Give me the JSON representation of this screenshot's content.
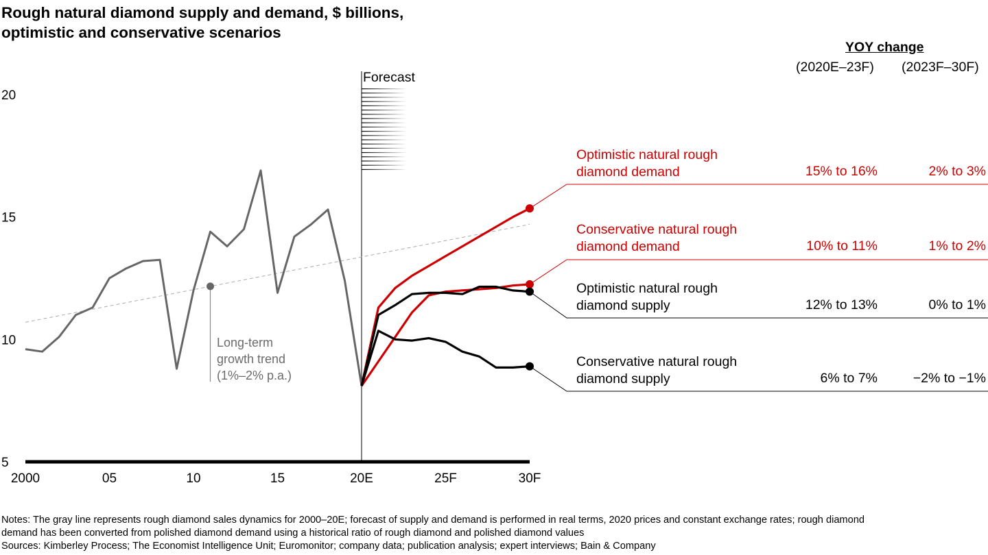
{
  "title_line1": "Rough natural diamond supply and demand, $ billions,",
  "title_line2": "optimistic and conservative scenarios",
  "forecast_label": "Forecast",
  "trend_annotation": {
    "line1": "Long-term",
    "line2": "growth trend",
    "line3": "(1%–2% p.a.)"
  },
  "yoy": {
    "header": "YOY change",
    "col1": "(2020E–23F)",
    "col2": "(2023F–30F)"
  },
  "legend": [
    {
      "line1": "Optimistic natural rough",
      "line2": "diamond demand",
      "v1": "15% to 16%",
      "v2": "2% to 3%",
      "color": "#cc0000"
    },
    {
      "line1": "Conservative natural rough",
      "line2": "diamond demand",
      "v1": "10% to 11%",
      "v2": "1% to 2%",
      "color": "#cc0000"
    },
    {
      "line1": "Optimistic natural rough",
      "line2": "diamond supply",
      "v1": "12% to 13%",
      "v2": "0% to 1%",
      "color": "#000000"
    },
    {
      "line1": "Conservative natural rough",
      "line2": "diamond supply",
      "v1": "6% to 7%",
      "v2": "−2% to −1%",
      "color": "#000000"
    }
  ],
  "notes": {
    "line1": "Notes: The gray line represents rough diamond sales dynamics for 2000–20E; forecast of supply and demand is performed in real terms, 2020 prices and constant exchange rates; rough diamond",
    "line2": "demand has been converted from polished diamond demand using a historical ratio of rough diamond and polished diamond values",
    "line3": "Sources: Kimberley Process; The Economist Intelligence Unit; Euromonitor; company data; publication analysis; expert interviews; Bain & Company"
  },
  "chart_data": {
    "type": "line",
    "title": "Rough natural diamond supply and demand, $ billions, optimistic and conservative scenarios",
    "xlabel": "",
    "ylabel": "$ billions",
    "ylim": [
      5,
      20
    ],
    "xlim": [
      2000,
      2030
    ],
    "yticks": [
      5,
      10,
      15,
      20
    ],
    "xticks": [
      {
        "value": 2000,
        "label": "2000"
      },
      {
        "value": 2005,
        "label": "05"
      },
      {
        "value": 2010,
        "label": "10"
      },
      {
        "value": 2015,
        "label": "15"
      },
      {
        "value": 2020,
        "label": "20E"
      },
      {
        "value": 2025,
        "label": "25F"
      },
      {
        "value": 2030,
        "label": "30F"
      }
    ],
    "grid": false,
    "forecast_start": 2020,
    "series": [
      {
        "name": "Historical rough diamond sales",
        "color": "#666666",
        "x": [
          2000,
          2001,
          2002,
          2003,
          2004,
          2005,
          2006,
          2007,
          2008,
          2009,
          2010,
          2011,
          2012,
          2013,
          2014,
          2015,
          2016,
          2017,
          2018,
          2019,
          2020
        ],
        "values": [
          9.6,
          9.5,
          10.1,
          11.0,
          11.3,
          12.5,
          12.9,
          13.2,
          13.25,
          8.8,
          12.0,
          14.4,
          13.8,
          14.5,
          16.9,
          11.9,
          14.2,
          14.7,
          15.3,
          12.4,
          8.1
        ]
      },
      {
        "name": "Optimistic natural rough diamond demand",
        "color": "#cc0000",
        "x": [
          2020,
          2021,
          2022,
          2023,
          2024,
          2025,
          2026,
          2027,
          2028,
          2029,
          2030
        ],
        "values": [
          8.1,
          11.3,
          12.1,
          12.6,
          13.0,
          13.4,
          13.8,
          14.2,
          14.6,
          15.0,
          15.35
        ]
      },
      {
        "name": "Conservative natural rough diamond demand",
        "color": "#cc0000",
        "x": [
          2020,
          2021,
          2022,
          2023,
          2024,
          2025,
          2026,
          2027,
          2028,
          2029,
          2030
        ],
        "values": [
          8.1,
          9.1,
          10.1,
          11.1,
          11.8,
          11.95,
          12.0,
          12.05,
          12.1,
          12.2,
          12.25
        ]
      },
      {
        "name": "Optimistic natural rough diamond supply",
        "color": "#000000",
        "x": [
          2020,
          2021,
          2022,
          2023,
          2024,
          2025,
          2026,
          2027,
          2028,
          2029,
          2030
        ],
        "values": [
          8.1,
          11.0,
          11.4,
          11.85,
          11.9,
          11.9,
          11.85,
          12.15,
          12.15,
          12.0,
          11.95
        ]
      },
      {
        "name": "Conservative natural rough diamond supply",
        "color": "#000000",
        "x": [
          2020,
          2021,
          2022,
          2023,
          2024,
          2025,
          2026,
          2027,
          2028,
          2029,
          2030
        ],
        "values": [
          8.1,
          10.35,
          10.0,
          9.95,
          10.05,
          9.9,
          9.5,
          9.3,
          8.85,
          8.85,
          8.9
        ]
      }
    ],
    "trendline": {
      "name": "Long-term growth trend (1%–2% p.a.)",
      "x": [
        2000,
        2030
      ],
      "values": [
        10.7,
        14.7
      ],
      "style": "dashed",
      "marker_x": 2011
    }
  }
}
